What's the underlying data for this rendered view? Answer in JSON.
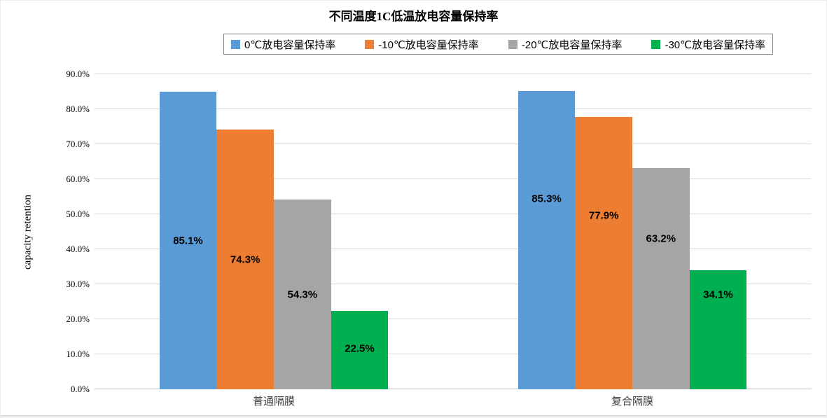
{
  "chart_data": {
    "type": "bar",
    "title": "不同温度1C低温放电容量保持率",
    "xlabel": "",
    "ylabel": "capacity retention",
    "ylim": [
      0,
      90
    ],
    "y_tick_labels": [
      "0.0%",
      "10.0%",
      "20.0%",
      "30.0%",
      "40.0%",
      "50.0%",
      "60.0%",
      "70.0%",
      "80.0%",
      "90.0%"
    ],
    "grid": true,
    "legend_position": "top-center-boxed",
    "categories": [
      "普通隔膜",
      "复合隔膜"
    ],
    "series": [
      {
        "name": "0℃放电容量保持率",
        "color": "#5B9BD5",
        "values": [
          85.1,
          85.3
        ],
        "data_labels": [
          "85.1%",
          "85.3%"
        ],
        "label_pos": [
          42.4,
          54.4
        ]
      },
      {
        "name": "-10℃放电容量保持率",
        "color": "#ED7D31",
        "values": [
          74.3,
          77.9
        ],
        "data_labels": [
          "74.3%",
          "77.9%"
        ],
        "label_pos": [
          37.0,
          49.6
        ]
      },
      {
        "name": "-20℃放电容量保持率",
        "color": "#A5A5A5",
        "values": [
          54.3,
          63.2
        ],
        "data_labels": [
          "54.3%",
          "63.2%"
        ],
        "label_pos": [
          27.0,
          43.0
        ]
      },
      {
        "name": "-30℃放电容量保持率",
        "color": "#00B050",
        "values": [
          22.5,
          34.1
        ],
        "data_labels": [
          "22.5%",
          "34.1%"
        ],
        "label_pos": [
          11.6,
          27.0
        ]
      }
    ],
    "colors": {
      "gridline": "#D9D9D9",
      "axis_line": "#BFBFBF",
      "text": "#000000",
      "category_text": "#3f3f3f"
    }
  }
}
